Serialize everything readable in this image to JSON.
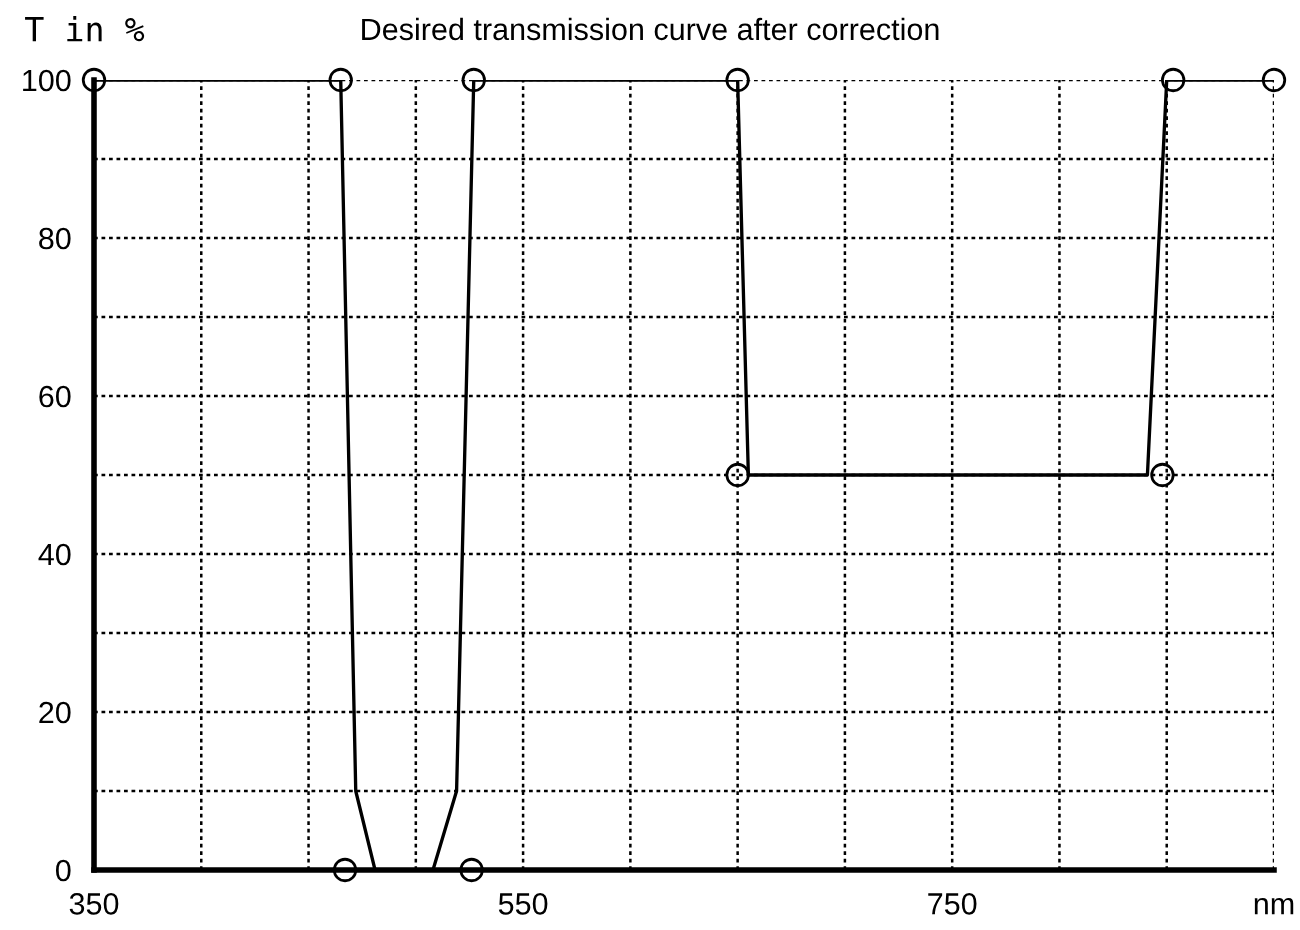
{
  "chart_data": {
    "type": "line",
    "title": "Desired transmission curve after correction",
    "ylabel": "T in %",
    "xlim": [
      350,
      900
    ],
    "ylim": [
      0,
      100
    ],
    "xticks": [
      350,
      {
        "value": 400,
        "label": null
      },
      {
        "value": 450,
        "label": null
      },
      {
        "value": 500,
        "label": null
      },
      550,
      {
        "value": 600,
        "label": null
      },
      {
        "value": 650,
        "label": null
      },
      {
        "value": 700,
        "label": null
      },
      750,
      {
        "value": 800,
        "label": null
      },
      {
        "value": 850,
        "label": null
      },
      {
        "value": 900,
        "label": "nm"
      }
    ],
    "yticks": [
      0,
      {
        "value": 10,
        "label": null
      },
      20,
      {
        "value": 30,
        "label": null
      },
      40,
      {
        "value": 50,
        "label": null
      },
      60,
      {
        "value": 70,
        "label": null
      },
      80,
      {
        "value": 90,
        "label": null
      },
      100
    ],
    "grid": true,
    "legend": false,
    "series": [
      {
        "color": "#000000",
        "marker": "none",
        "line_style": "solid",
        "x": [
          350,
          465,
          472,
          481,
          508,
          519,
          527,
          650,
          655,
          841,
          850,
          900
        ],
        "values": [
          100,
          100,
          10,
          0,
          0,
          10,
          100,
          100,
          50,
          50,
          100,
          100
        ]
      },
      {
        "type": "scatter",
        "color": "#000000",
        "marker": "circle",
        "x": [
          350,
          465,
          467,
          526,
          527,
          650,
          650,
          848,
          853,
          900
        ],
        "values": [
          100,
          100,
          0,
          0,
          100,
          100,
          50,
          50,
          100,
          100
        ]
      }
    ]
  }
}
